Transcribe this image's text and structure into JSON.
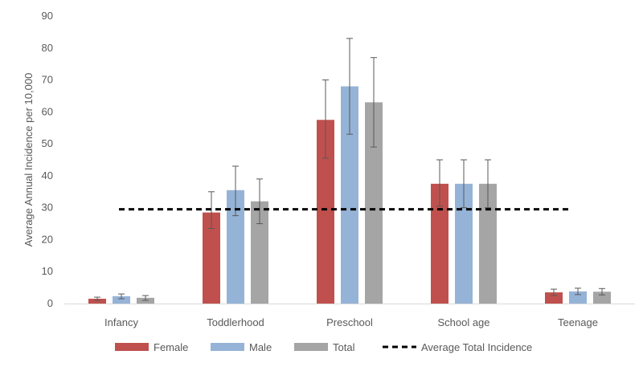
{
  "chart_data": {
    "type": "bar",
    "title": "",
    "xlabel": "",
    "ylabel": "Average Annual Incidence per 10,000",
    "ylim": [
      0,
      90
    ],
    "yticks": [
      0,
      10,
      20,
      30,
      40,
      50,
      60,
      70,
      80,
      90
    ],
    "categories": [
      "Infancy",
      "Toddlerhood",
      "Preschool",
      "School age",
      "Teenage"
    ],
    "series": [
      {
        "name": "Female",
        "color": "#c0504d",
        "values": [
          1.5,
          28.5,
          57.5,
          37.5,
          3.5
        ],
        "error_low": [
          1.0,
          23.5,
          45.5,
          30.5,
          2.5
        ],
        "error_high": [
          2.0,
          35.0,
          70.0,
          45.0,
          4.5
        ]
      },
      {
        "name": "Male",
        "color": "#95b3d7",
        "values": [
          2.3,
          35.5,
          68.0,
          37.5,
          3.8
        ],
        "error_low": [
          1.5,
          27.5,
          53.0,
          30.0,
          2.8
        ],
        "error_high": [
          3.0,
          43.0,
          83.0,
          45.0,
          4.8
        ]
      },
      {
        "name": "Total",
        "color": "#a5a5a5",
        "values": [
          1.8,
          32.0,
          63.0,
          37.5,
          3.7
        ],
        "error_low": [
          1.0,
          25.0,
          49.0,
          30.0,
          2.7
        ],
        "error_high": [
          2.5,
          39.0,
          77.0,
          45.0,
          4.7
        ]
      }
    ],
    "reference_line": {
      "name": "Average Total Incidence",
      "value": 29.5,
      "style": "dashed",
      "color": "#000000"
    },
    "grid": false,
    "legend": "bottom"
  }
}
